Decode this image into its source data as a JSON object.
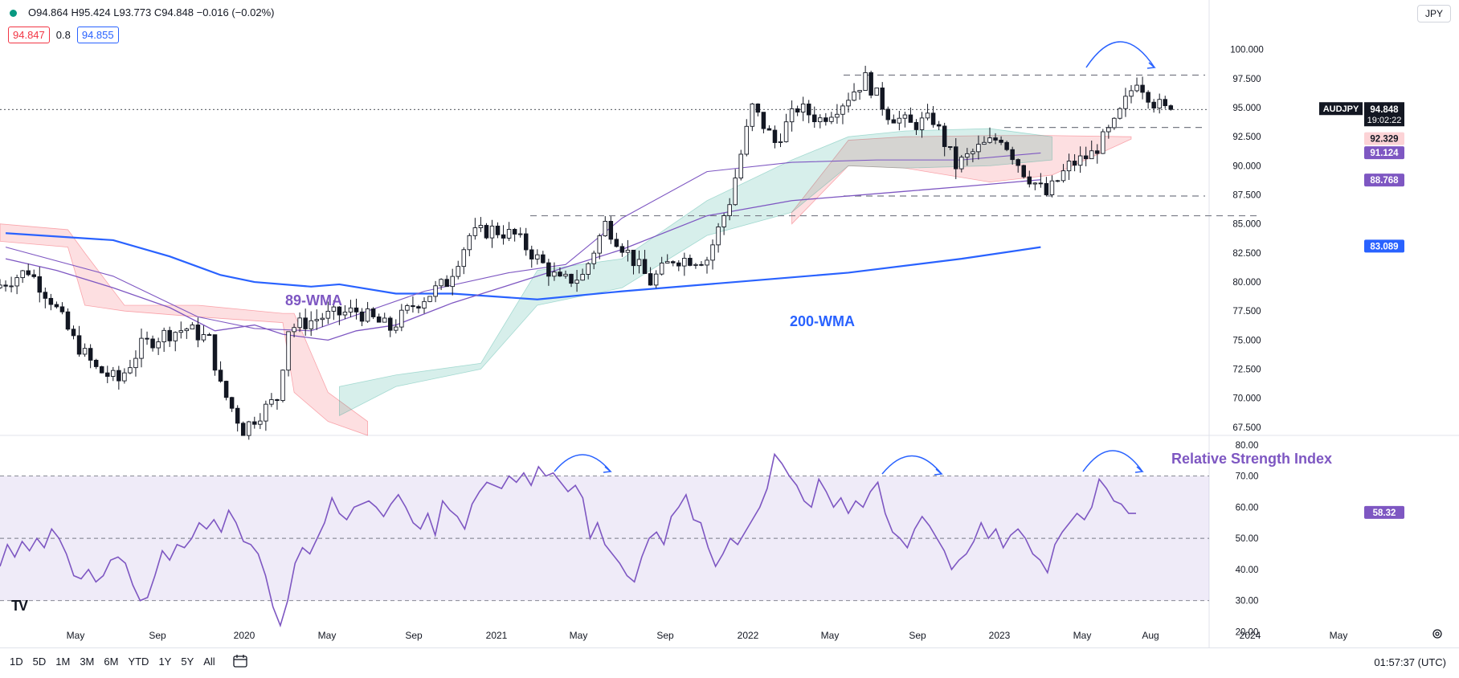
{
  "header": {
    "ohlc": "O94.864  H95.424  L93.773  C94.848  −0.016 (−0.02%)",
    "tag_bid": "94.847",
    "spread": "0.8",
    "tag_ask": "94.855",
    "currency": "JPY"
  },
  "bottom_bar": {
    "ranges": [
      "1D",
      "5D",
      "1M",
      "3M",
      "6M",
      "YTD",
      "1Y",
      "5Y",
      "All"
    ],
    "clock": "01:57:37 (UTC)"
  },
  "chart_data": [
    {
      "type": "candlestick",
      "symbol": "AUDJPY",
      "x_labels": [
        "May",
        "Sep",
        "2020",
        "May",
        "Sep",
        "2021",
        "May",
        "Sep",
        "2022",
        "May",
        "Sep",
        "2023",
        "May",
        "Aug",
        "2024",
        "May"
      ],
      "y_ticks": [
        "100.000",
        "97.500",
        "95.000",
        "92.500",
        "90.000",
        "87.500",
        "85.000",
        "82.500",
        "80.000",
        "77.500",
        "75.000",
        "72.500",
        "70.000",
        "67.500"
      ],
      "ylim": [
        66.8,
        101.5
      ],
      "last_price": "94.848",
      "last_countdown": "19:02:22",
      "series_values": [
        {
          "label": "92.329",
          "color": "#f23645",
          "value": 92.33
        },
        {
          "label": "91.124",
          "color": "#7e57c2",
          "value": 91.12
        },
        {
          "label": "88.768",
          "color": "#7e57c2",
          "value": 88.77
        },
        {
          "label": "83.089",
          "color": "#2962ff",
          "value": 83.09
        }
      ],
      "annotations": [
        "89-WMA",
        "200-WMA"
      ],
      "resistance_levels": [
        97.8,
        93.3,
        87.4,
        85.7
      ],
      "wma200_points": [
        [
          1,
          84.2
        ],
        [
          20,
          83.6
        ],
        [
          30,
          82.2
        ],
        [
          39,
          80.6
        ],
        [
          45,
          80.0
        ],
        [
          55,
          79.6
        ],
        [
          60,
          79.8
        ],
        [
          70,
          79.0
        ],
        [
          80,
          79.0
        ],
        [
          95,
          78.5
        ],
        [
          110,
          79.2
        ],
        [
          130,
          80.0
        ],
        [
          150,
          80.8
        ],
        [
          170,
          82.0
        ],
        [
          184,
          83.0
        ]
      ],
      "wma89_points": [
        [
          1,
          82.0
        ],
        [
          10,
          81.0
        ],
        [
          20,
          79.5
        ],
        [
          30,
          77.8
        ],
        [
          38,
          75.8
        ],
        [
          45,
          76.3
        ],
        [
          50,
          75.5
        ],
        [
          58,
          75.0
        ],
        [
          63,
          75.8
        ],
        [
          70,
          76.3
        ],
        [
          80,
          78.2
        ],
        [
          95,
          80.5
        ],
        [
          110,
          82.8
        ],
        [
          125,
          85.7
        ],
        [
          140,
          87.0
        ],
        [
          160,
          87.8
        ],
        [
          170,
          88.2
        ],
        [
          184,
          88.8
        ]
      ],
      "wma_fast_points": [
        [
          1,
          83.0
        ],
        [
          20,
          80.5
        ],
        [
          35,
          77.0
        ],
        [
          45,
          76.0
        ],
        [
          55,
          75.8
        ],
        [
          65,
          77.5
        ],
        [
          75,
          79.2
        ],
        [
          90,
          80.8
        ],
        [
          100,
          81.5
        ],
        [
          110,
          85.5
        ],
        [
          125,
          89.5
        ],
        [
          140,
          90.3
        ],
        [
          155,
          90.5
        ],
        [
          170,
          90.5
        ],
        [
          184,
          91.1
        ]
      ],
      "cloud_red": [
        [
          0,
          85.0,
          83.5
        ],
        [
          12,
          84.5,
          83.0
        ],
        [
          15,
          82.5,
          78.0
        ],
        [
          22,
          78.0,
          77.5
        ],
        [
          35,
          78.0,
          77.0
        ],
        [
          50,
          77.3,
          76.5
        ],
        [
          52,
          77.3,
          70.5
        ],
        [
          58,
          70.5,
          68.0
        ],
        [
          65,
          68.0,
          66.8
        ],
        [
          140,
          86.0,
          85.0
        ],
        [
          150,
          92.2,
          90.0
        ],
        [
          160,
          92.5,
          89.8
        ],
        [
          175,
          92.6,
          88.6
        ],
        [
          186,
          92.6,
          89.2
        ],
        [
          200,
          92.5,
          92.3
        ]
      ],
      "cloud_green": [
        [
          60,
          68.5,
          71.0
        ],
        [
          70,
          71.0,
          72.0
        ],
        [
          85,
          72.5,
          73.0
        ],
        [
          95,
          78.0,
          81.0
        ],
        [
          110,
          79.5,
          82.0
        ],
        [
          125,
          84.0,
          87.0
        ],
        [
          140,
          86.0,
          90.5
        ],
        [
          150,
          90.0,
          92.5
        ],
        [
          160,
          89.8,
          93.0
        ],
        [
          175,
          90.0,
          93.2
        ],
        [
          186,
          90.5,
          92.5
        ]
      ],
      "candle_path": [
        [
          0,
          79.5
        ],
        [
          6,
          81.0
        ],
        [
          10,
          78.5
        ],
        [
          14,
          75.0
        ],
        [
          18,
          72.5
        ],
        [
          22,
          71.5
        ],
        [
          26,
          74.5
        ],
        [
          30,
          75.5
        ],
        [
          34,
          76.0
        ],
        [
          38,
          75.0
        ],
        [
          40,
          71.0
        ],
        [
          44,
          67.3
        ],
        [
          46,
          68.3
        ],
        [
          50,
          70.0
        ],
        [
          52,
          76.0
        ],
        [
          58,
          77.0
        ],
        [
          64,
          77.5
        ],
        [
          70,
          76.0
        ],
        [
          74,
          78.0
        ],
        [
          80,
          80.0
        ],
        [
          84,
          84.0
        ],
        [
          88,
          84.5
        ],
        [
          92,
          84.0
        ],
        [
          96,
          82.0
        ],
        [
          100,
          80.0
        ],
        [
          104,
          80.5
        ],
        [
          108,
          85.0
        ],
        [
          112,
          82.5
        ],
        [
          116,
          80.0
        ],
        [
          120,
          82.0
        ],
        [
          126,
          82.0
        ],
        [
          130,
          87.0
        ],
        [
          134,
          95.0
        ],
        [
          138,
          92.0
        ],
        [
          142,
          95.0
        ],
        [
          146,
          94.0
        ],
        [
          150,
          95.5
        ],
        [
          154,
          97.5
        ],
        [
          158,
          94.5
        ],
        [
          162,
          93.5
        ],
        [
          166,
          94.0
        ],
        [
          170,
          90.0
        ],
        [
          174,
          91.5
        ],
        [
          178,
          92.5
        ],
        [
          182,
          89.5
        ],
        [
          186,
          87.5
        ],
        [
          190,
          90.0
        ],
        [
          194,
          91.0
        ],
        [
          198,
          93.5
        ],
        [
          202,
          97.5
        ],
        [
          205,
          95.5
        ],
        [
          207,
          94.8
        ]
      ]
    },
    {
      "type": "line",
      "title": "Relative Strength Index",
      "y_ticks": [
        "80.00",
        "70.00",
        "60.00",
        "50.00",
        "40.00",
        "30.00",
        "20.00"
      ],
      "ylim": [
        16.5,
        81.5
      ],
      "band": [
        30,
        70
      ],
      "mid": 50,
      "last_value": "58.32",
      "values": [
        41,
        48,
        44,
        49,
        46,
        50,
        47,
        53,
        50,
        45,
        38,
        37,
        40,
        36,
        38,
        43,
        44,
        42,
        35,
        30,
        31,
        38,
        46,
        43,
        48,
        47,
        50,
        55,
        53,
        56,
        52,
        59,
        55,
        49,
        48,
        45,
        38,
        28,
        22,
        30,
        42,
        47,
        45,
        50,
        55,
        63,
        58,
        56,
        60,
        61,
        62,
        60,
        57,
        61,
        64,
        60,
        55,
        53,
        58,
        51,
        62,
        59,
        57,
        53,
        61,
        65,
        68,
        67,
        66,
        70,
        68,
        71,
        67,
        73,
        70,
        71,
        68,
        65,
        67,
        63,
        50,
        55,
        48,
        45,
        42,
        38,
        36,
        44,
        50,
        52,
        48,
        57,
        60,
        64,
        56,
        55,
        47,
        41,
        45,
        50,
        48,
        52,
        56,
        60,
        66,
        77,
        74,
        70,
        67,
        62,
        60,
        69,
        65,
        60,
        63,
        58,
        62,
        60,
        65,
        68,
        58,
        52,
        50,
        47,
        53,
        57,
        54,
        50,
        46,
        40,
        43,
        45,
        49,
        55,
        50,
        53,
        47,
        51,
        53,
        50,
        45,
        43,
        39,
        48,
        52,
        55,
        58,
        56,
        60,
        69,
        66,
        62,
        61,
        58,
        58
      ]
    }
  ]
}
